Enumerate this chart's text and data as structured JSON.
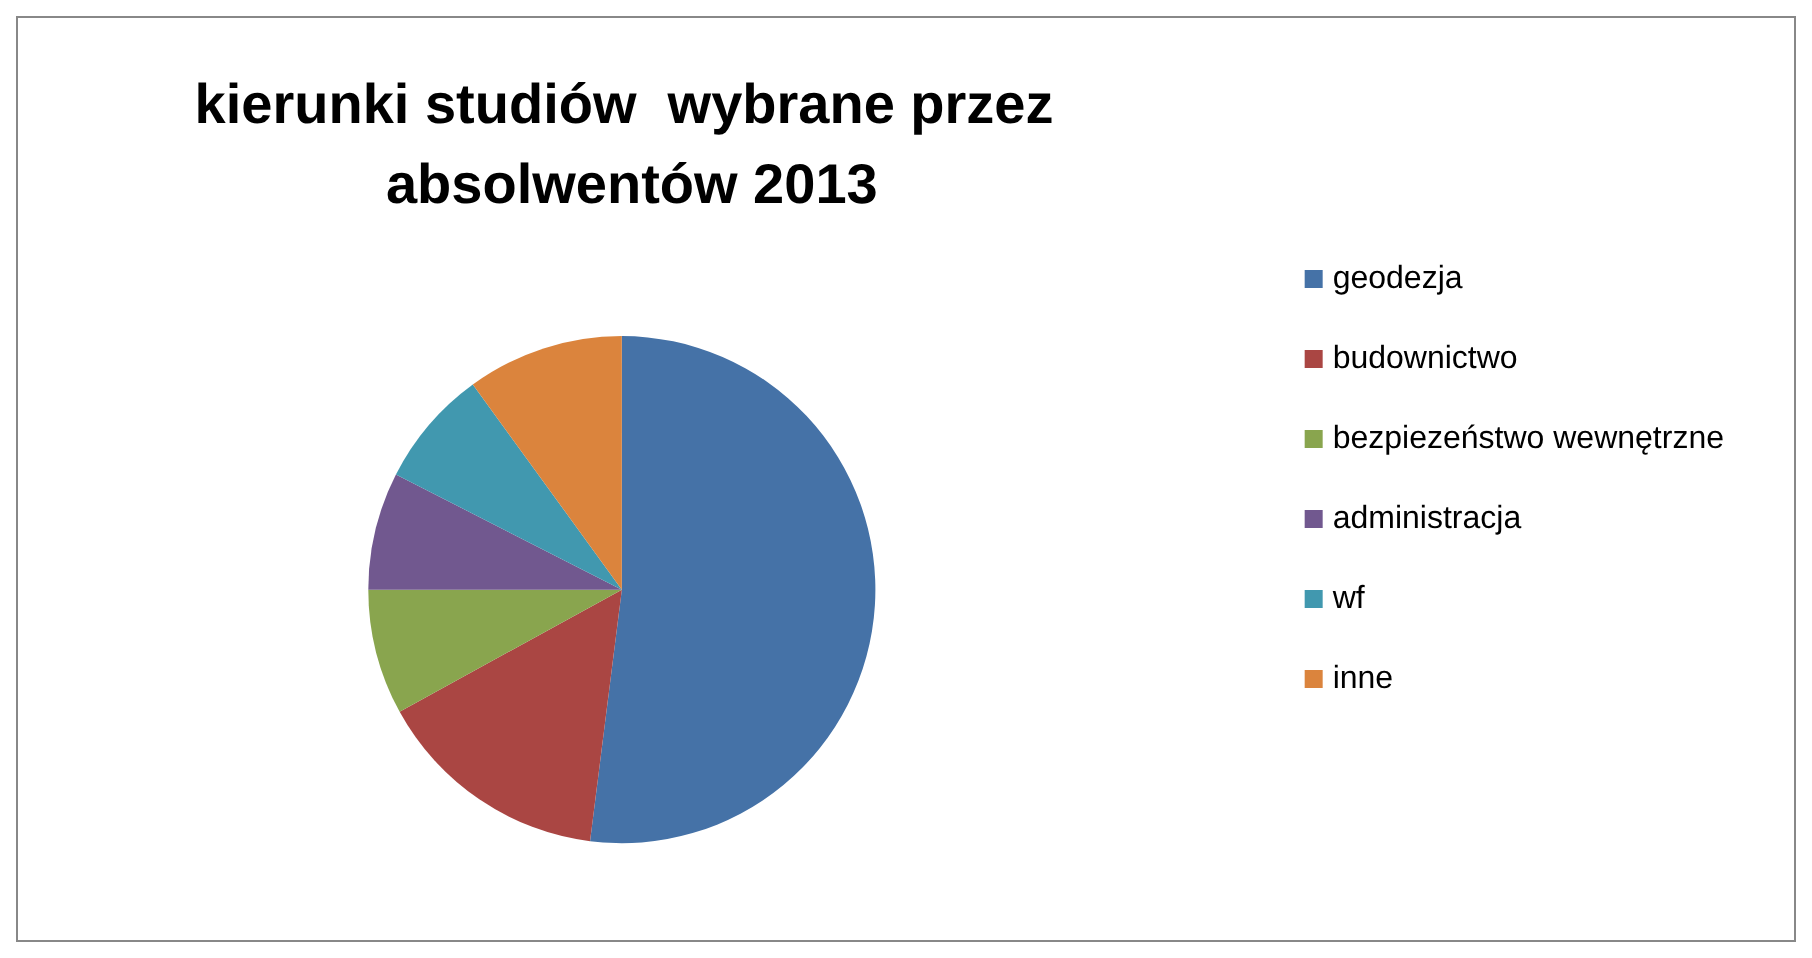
{
  "chart_data": {
    "type": "pie",
    "title": "kierunki studiów  wybrane przez absolwentów 2013",
    "categories": [
      "geodezja",
      "budownictwo",
      "bezpiezeństwo wewnętrzne",
      "administracja",
      "wf",
      "inne"
    ],
    "values": [
      52,
      15,
      8,
      7.5,
      7.5,
      10
    ],
    "colors": [
      "#4572a7",
      "#aa4643",
      "#89a54e",
      "#71588f",
      "#4198af",
      "#db843d"
    ],
    "legend": "right"
  }
}
